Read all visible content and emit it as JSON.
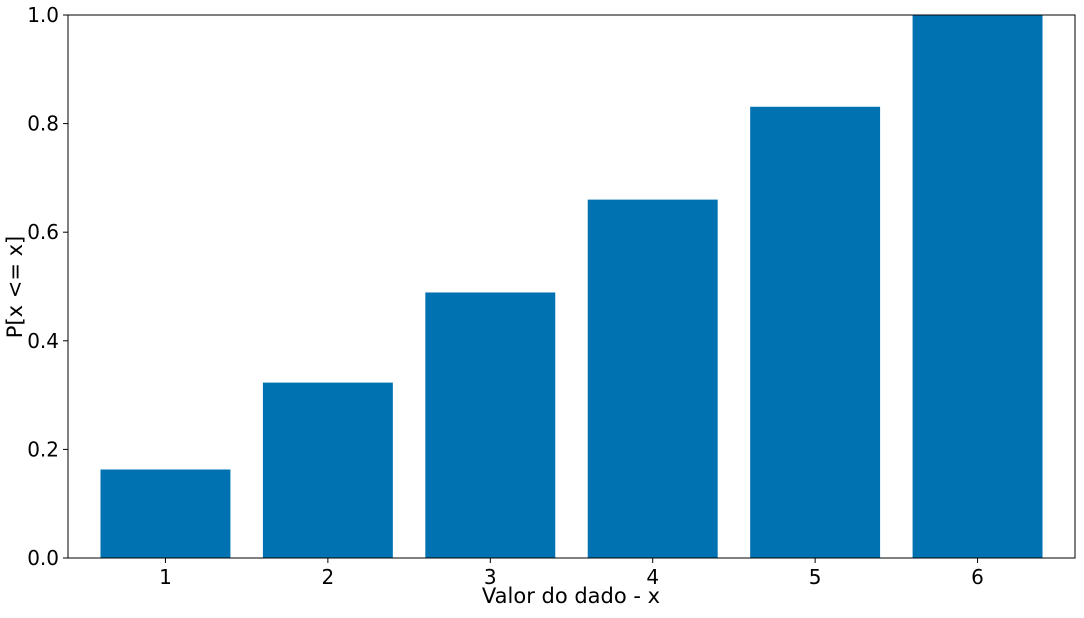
{
  "chart_data": {
    "type": "bar",
    "title": "",
    "categories": [
      "1",
      "2",
      "3",
      "4",
      "5",
      "6"
    ],
    "values": [
      0.163,
      0.323,
      0.489,
      0.66,
      0.831,
      1.0
    ],
    "xlabel": "Valor do dado - x",
    "ylabel": "P[x <= x]",
    "ylim": [
      0,
      1.0
    ],
    "yticks": [
      "0.0",
      "0.2",
      "0.4",
      "0.6",
      "0.8",
      "1.0"
    ],
    "grid": false,
    "legend": "none",
    "bar_color": "#0072b2"
  }
}
